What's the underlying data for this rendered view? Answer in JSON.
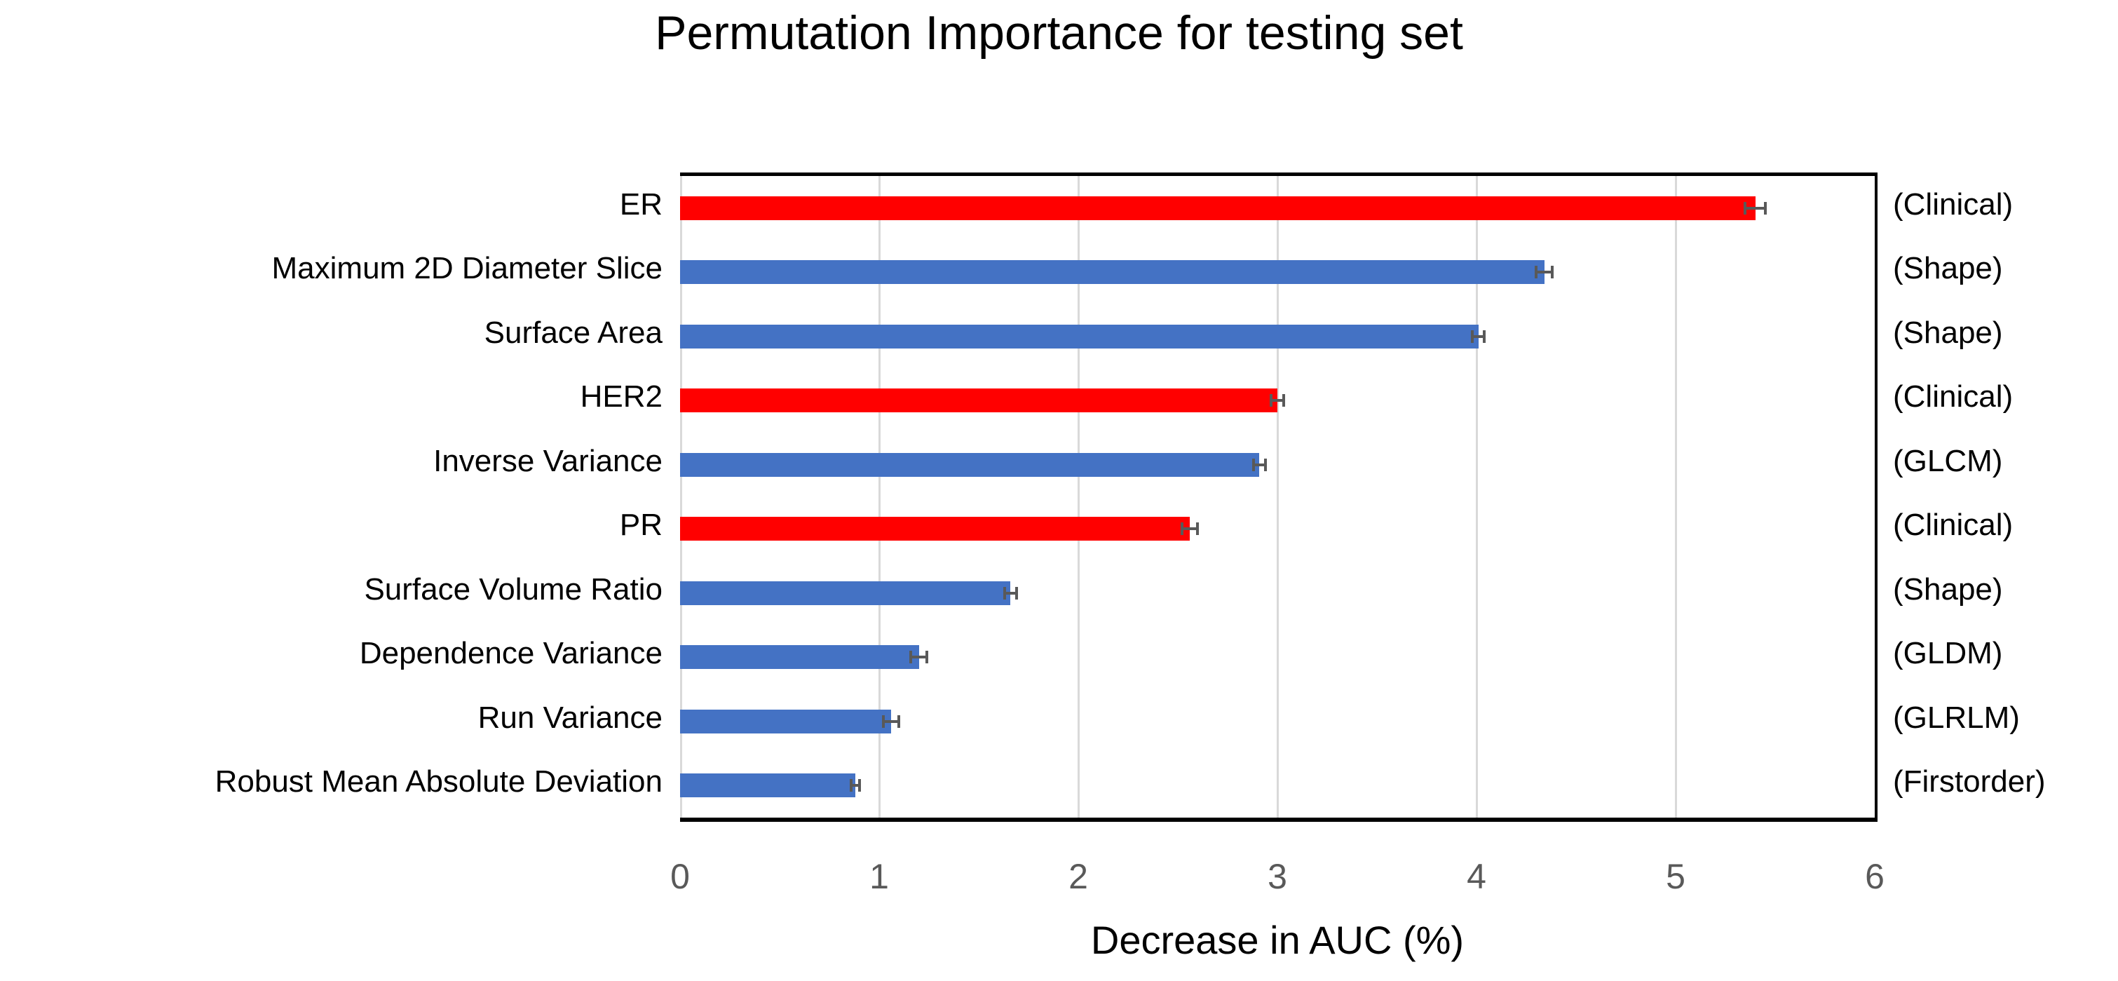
{
  "title": "Permutation Importance for testing set",
  "x_axis": {
    "label": "Decrease in AUC (%)",
    "min": 0,
    "max": 6,
    "ticks": [
      "0",
      "1",
      "2",
      "3",
      "4",
      "5",
      "6"
    ]
  },
  "colors": {
    "clinical_bar": "#FF0000",
    "radiomic_bar": "#4472C4",
    "gridline": "#D9D9D9",
    "axis_line": "#000000",
    "tick_text": "#595959",
    "error_bar": "#595959"
  },
  "chart_data": {
    "type": "bar",
    "orientation": "horizontal",
    "title": "Permutation Importance for testing set",
    "xlabel": "Decrease in AUC (%)",
    "ylabel": "",
    "xlim": [
      0,
      6
    ],
    "x_ticks": [
      0,
      1,
      2,
      3,
      4,
      5,
      6
    ],
    "grid": "vertical major gridlines at integers, light gray",
    "legend": "none",
    "categories": [
      "ER",
      "Maximum 2D Diameter Slice",
      "Surface Area",
      "HER2",
      "Inverse Variance",
      "PR",
      "Surface Volume Ratio",
      "Dependence Variance",
      "Run Variance",
      "Robust Mean Absolute Deviation"
    ],
    "bars": [
      {
        "label": "ER",
        "group": "(Clinical)",
        "value": 5.4,
        "error": 0.05,
        "color": "#FF0000"
      },
      {
        "label": "Maximum 2D Diameter Slice",
        "group": "(Shape)",
        "value": 4.34,
        "error": 0.04,
        "color": "#4472C4"
      },
      {
        "label": "Surface Area",
        "group": "(Shape)",
        "value": 4.01,
        "error": 0.03,
        "color": "#4472C4"
      },
      {
        "label": "HER2",
        "group": "(Clinical)",
        "value": 3.0,
        "error": 0.03,
        "color": "#FF0000"
      },
      {
        "label": "Inverse Variance",
        "group": "(GLCM)",
        "value": 2.91,
        "error": 0.03,
        "color": "#4472C4"
      },
      {
        "label": "PR",
        "group": "(Clinical)",
        "value": 2.56,
        "error": 0.04,
        "color": "#FF0000"
      },
      {
        "label": "Surface Volume Ratio",
        "group": "(Shape)",
        "value": 1.66,
        "error": 0.03,
        "color": "#4472C4"
      },
      {
        "label": "Dependence Variance",
        "group": "(GLDM)",
        "value": 1.2,
        "error": 0.04,
        "color": "#4472C4"
      },
      {
        "label": "Run Variance",
        "group": "(GLRLM)",
        "value": 1.06,
        "error": 0.04,
        "color": "#4472C4"
      },
      {
        "label": "Robust Mean Absolute Deviation",
        "group": "(Firstorder)",
        "value": 0.88,
        "error": 0.02,
        "color": "#4472C4"
      }
    ]
  }
}
